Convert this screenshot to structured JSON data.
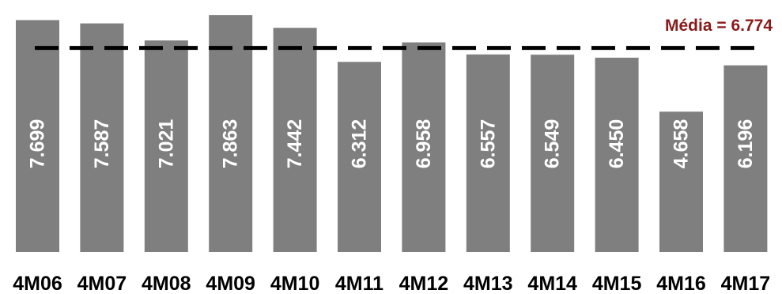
{
  "chart_data": {
    "type": "bar",
    "categories": [
      "4M06",
      "4M07",
      "4M08",
      "4M09",
      "4M10",
      "4M11",
      "4M12",
      "4M13",
      "4M14",
      "4M15",
      "4M16",
      "4M17"
    ],
    "values": [
      7.699,
      7.587,
      7.021,
      7.863,
      7.442,
      6.312,
      6.958,
      6.557,
      6.549,
      6.45,
      4.658,
      6.196
    ],
    "value_labels": [
      "7.699",
      "7.587",
      "7.021",
      "7.863",
      "7.442",
      "6.312",
      "6.958",
      "6.557",
      "6.549",
      "6.450",
      "4.658",
      "6.196"
    ],
    "mean": {
      "value": 6.774,
      "label": "Média = 6.774",
      "color": "#8b1a1a",
      "style": "dashed"
    },
    "bar_color": "#7f7f7f",
    "ylim": [
      0,
      8
    ],
    "title": "",
    "xlabel": "",
    "ylabel": "",
    "grid": false,
    "legend": "none"
  }
}
